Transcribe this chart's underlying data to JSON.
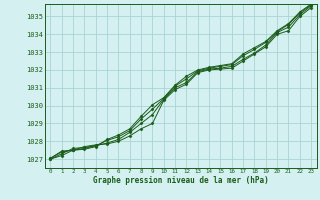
{
  "title": "Graphe pression niveau de la mer (hPa)",
  "bg_color": "#d4f0f0",
  "grid_color": "#aad4d4",
  "line_color": "#1a5c1a",
  "marker_color": "#1a5c1a",
  "xlim": [
    -0.5,
    23.5
  ],
  "ylim": [
    1026.5,
    1035.7
  ],
  "yticks": [
    1027,
    1028,
    1029,
    1030,
    1031,
    1032,
    1033,
    1034,
    1035
  ],
  "xticks": [
    0,
    1,
    2,
    3,
    4,
    5,
    6,
    7,
    8,
    9,
    10,
    11,
    12,
    13,
    14,
    15,
    16,
    17,
    18,
    19,
    20,
    21,
    22,
    23
  ],
  "series": [
    [
      1027.0,
      1027.2,
      1027.5,
      1027.7,
      1027.8,
      1027.85,
      1028.0,
      1028.3,
      1028.7,
      1029.0,
      1030.3,
      1030.9,
      1031.2,
      1031.85,
      1032.0,
      1032.05,
      1032.1,
      1032.5,
      1032.9,
      1033.3,
      1034.0,
      1034.2,
      1035.0,
      1035.5
    ],
    [
      1027.0,
      1027.3,
      1027.6,
      1027.65,
      1027.75,
      1027.9,
      1028.1,
      1028.5,
      1029.0,
      1029.5,
      1030.35,
      1031.0,
      1031.3,
      1031.9,
      1032.05,
      1032.1,
      1032.2,
      1032.6,
      1032.95,
      1033.4,
      1034.1,
      1034.4,
      1035.1,
      1035.6
    ],
    [
      1027.05,
      1027.4,
      1027.5,
      1027.6,
      1027.75,
      1028.05,
      1028.25,
      1028.6,
      1029.25,
      1029.8,
      1030.4,
      1031.1,
      1031.5,
      1031.95,
      1032.1,
      1032.2,
      1032.3,
      1032.8,
      1033.15,
      1033.55,
      1034.15,
      1034.55,
      1035.2,
      1035.65
    ],
    [
      1027.05,
      1027.45,
      1027.5,
      1027.55,
      1027.7,
      1028.1,
      1028.35,
      1028.7,
      1029.4,
      1030.05,
      1030.45,
      1031.15,
      1031.65,
      1032.0,
      1032.15,
      1032.25,
      1032.35,
      1032.9,
      1033.25,
      1033.6,
      1034.2,
      1034.6,
      1035.25,
      1035.7
    ]
  ]
}
